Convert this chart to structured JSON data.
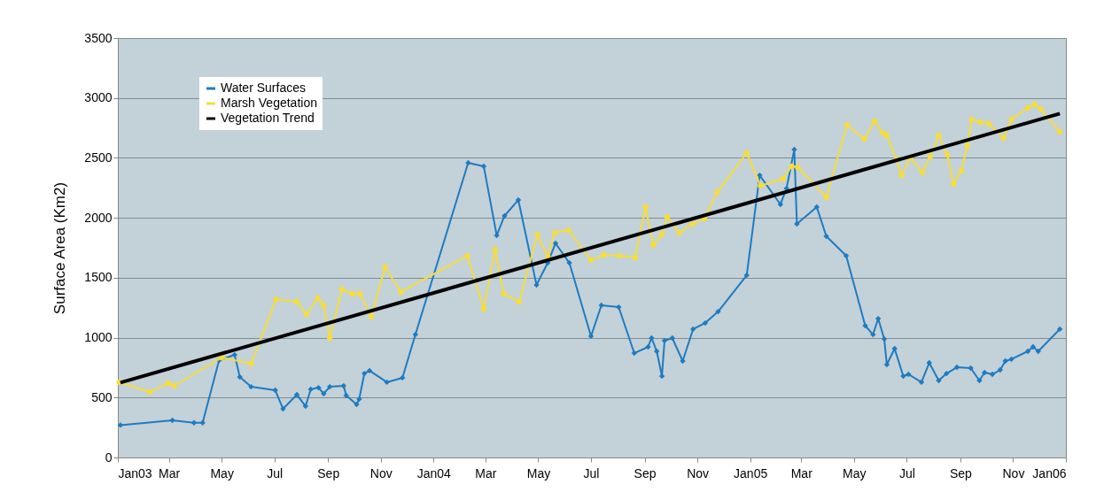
{
  "chart_data": {
    "type": "line",
    "ylabel": "Surface Area (Km2)",
    "xlim": [
      "2003-01-01",
      "2006-01-01"
    ],
    "ylim": [
      0,
      3500
    ],
    "xticks": [
      {
        "value": "2003-01-01",
        "label": "Jan03"
      },
      {
        "value": "2003-03-01",
        "label": "Mar"
      },
      {
        "value": "2003-05-01",
        "label": "May"
      },
      {
        "value": "2003-07-01",
        "label": "Jul"
      },
      {
        "value": "2003-09-01",
        "label": "Sep"
      },
      {
        "value": "2003-11-01",
        "label": "Nov"
      },
      {
        "value": "2004-01-01",
        "label": "Jan04"
      },
      {
        "value": "2004-03-01",
        "label": "Mar"
      },
      {
        "value": "2004-05-01",
        "label": "May"
      },
      {
        "value": "2004-07-01",
        "label": "Jul"
      },
      {
        "value": "2004-09-01",
        "label": "Sep"
      },
      {
        "value": "2004-11-01",
        "label": "Nov"
      },
      {
        "value": "2005-01-01",
        "label": "Jan05"
      },
      {
        "value": "2005-03-01",
        "label": "Mar"
      },
      {
        "value": "2005-05-01",
        "label": "May"
      },
      {
        "value": "2005-07-01",
        "label": "Jul"
      },
      {
        "value": "2005-09-01",
        "label": "Sep"
      },
      {
        "value": "2005-11-01",
        "label": "Nov"
      },
      {
        "value": "2006-01-01",
        "label": "Jan06"
      }
    ],
    "yticks": [
      0,
      500,
      1000,
      1500,
      2000,
      2500,
      3000,
      3500
    ],
    "grid": "y",
    "legend": "top left",
    "series": [
      {
        "name": "Water Surfaces",
        "color": "#1f7bbf",
        "marker": "diamond",
        "x": [
          "2003-01-04",
          "2003-03-05",
          "2003-03-30",
          "2003-04-09",
          "2003-04-28",
          "2003-05-16",
          "2003-05-22",
          "2003-06-04",
          "2003-07-02",
          "2003-07-11",
          "2003-07-27",
          "2003-08-06",
          "2003-08-12",
          "2003-08-21",
          "2003-08-27",
          "2003-09-03",
          "2003-09-19",
          "2003-09-22",
          "2003-10-04",
          "2003-10-07",
          "2003-10-13",
          "2003-10-19",
          "2003-11-08",
          "2003-11-26",
          "2003-12-11",
          "2004-02-10",
          "2004-02-28",
          "2004-03-14",
          "2004-03-23",
          "2004-04-08",
          "2004-04-29",
          "2004-05-12",
          "2004-05-21",
          "2004-06-06",
          "2004-07-01",
          "2004-07-13",
          "2004-08-02",
          "2004-08-20",
          "2004-09-05",
          "2004-09-09",
          "2004-09-15",
          "2004-09-21",
          "2004-09-24",
          "2004-10-03",
          "2004-10-15",
          "2004-10-27",
          "2004-11-10",
          "2004-11-25",
          "2004-12-28",
          "2005-01-12",
          "2005-02-05",
          "2005-02-12",
          "2005-02-21",
          "2005-02-24",
          "2005-03-19",
          "2005-03-30",
          "2005-04-22",
          "2005-05-14",
          "2005-05-23",
          "2005-05-29",
          "2005-06-05",
          "2005-06-08",
          "2005-06-17",
          "2005-06-27",
          "2005-07-03",
          "2005-07-18",
          "2005-07-27",
          "2005-08-07",
          "2005-08-16",
          "2005-08-28",
          "2005-09-13",
          "2005-09-23",
          "2005-09-29",
          "2005-10-08",
          "2005-10-17",
          "2005-10-23",
          "2005-10-30",
          "2005-11-18",
          "2005-11-24",
          "2005-11-30",
          "2005-12-25"
        ],
        "values": [
          270,
          310,
          290,
          290,
          810,
          857,
          672,
          590,
          561,
          406,
          524,
          428,
          569,
          583,
          532,
          590,
          598,
          517,
          443,
          487,
          701,
          724,
          628,
          665,
          1026,
          2459,
          2430,
          1853,
          2016,
          2149,
          1440,
          1624,
          1787,
          1624,
          1012,
          1270,
          1255,
          871,
          923,
          997,
          886,
          679,
          975,
          997,
          805,
          1071,
          1122,
          1218,
          1521,
          2355,
          2112,
          2245,
          2570,
          1949,
          2090,
          1846,
          1683,
          1100,
          1026,
          1159,
          989,
          775,
          908,
          679,
          694,
          628,
          790,
          642,
          701,
          753,
          746,
          642,
          709,
          694,
          731,
          805,
          820,
          886,
          923,
          886,
          1071
        ]
      },
      {
        "name": "Marsh Vegetation",
        "color": "#f5dd3a",
        "marker": "circle",
        "x": [
          "2003-01-03",
          "2003-02-07",
          "2003-02-28",
          "2003-03-07",
          "2003-05-01",
          "2003-06-04",
          "2003-07-03",
          "2003-07-27",
          "2003-08-07",
          "2003-08-20",
          "2003-08-27",
          "2003-09-03",
          "2003-09-17",
          "2003-09-29",
          "2003-10-08",
          "2003-10-21",
          "2003-11-06",
          "2003-11-24",
          "2004-02-09",
          "2004-02-28",
          "2004-03-12",
          "2004-03-22",
          "2004-04-09",
          "2004-04-30",
          "2004-05-12",
          "2004-05-20",
          "2004-06-05",
          "2004-07-01",
          "2004-07-16",
          "2004-08-03",
          "2004-08-21",
          "2004-09-02",
          "2004-09-11",
          "2004-09-21",
          "2004-09-27",
          "2004-10-11",
          "2004-10-26",
          "2004-11-09",
          "2004-11-24",
          "2004-12-28",
          "2005-01-13",
          "2005-02-08",
          "2005-02-18",
          "2005-02-25",
          "2005-03-30",
          "2005-04-23",
          "2005-05-13",
          "2005-05-25",
          "2005-06-03",
          "2005-06-08",
          "2005-06-19",
          "2005-06-25",
          "2005-07-05",
          "2005-07-19",
          "2005-07-28",
          "2005-08-07",
          "2005-08-17",
          "2005-08-24",
          "2005-09-02",
          "2005-09-09",
          "2005-09-14",
          "2005-09-24",
          "2005-10-04",
          "2005-10-21",
          "2005-10-30",
          "2005-11-18",
          "2005-11-26",
          "2005-12-03",
          "2005-12-25"
        ],
        "values": [
          628,
          546,
          620,
          598,
          834,
          783,
          1321,
          1300,
          1196,
          1329,
          1270,
          997,
          1403,
          1366,
          1366,
          1174,
          1588,
          1381,
          1683,
          1240,
          1735,
          1366,
          1300,
          1860,
          1676,
          1875,
          1897,
          1646,
          1691,
          1683,
          1669,
          2090,
          1772,
          1860,
          2008,
          1875,
          1949,
          1993,
          2215,
          2540,
          2267,
          2326,
          2430,
          2422,
          2171,
          2776,
          2658,
          2806,
          2710,
          2688,
          2488,
          2355,
          2503,
          2378,
          2510,
          2688,
          2525,
          2282,
          2392,
          2599,
          2820,
          2798,
          2784,
          2665,
          2820,
          2917,
          2946,
          2909,
          2717
        ]
      },
      {
        "name": "Vegetation Trend",
        "color": "#000000",
        "marker": "none",
        "type": "line",
        "x": [
          "2003-01-04",
          "2005-12-25"
        ],
        "values": [
          625,
          2870
        ]
      }
    ]
  }
}
